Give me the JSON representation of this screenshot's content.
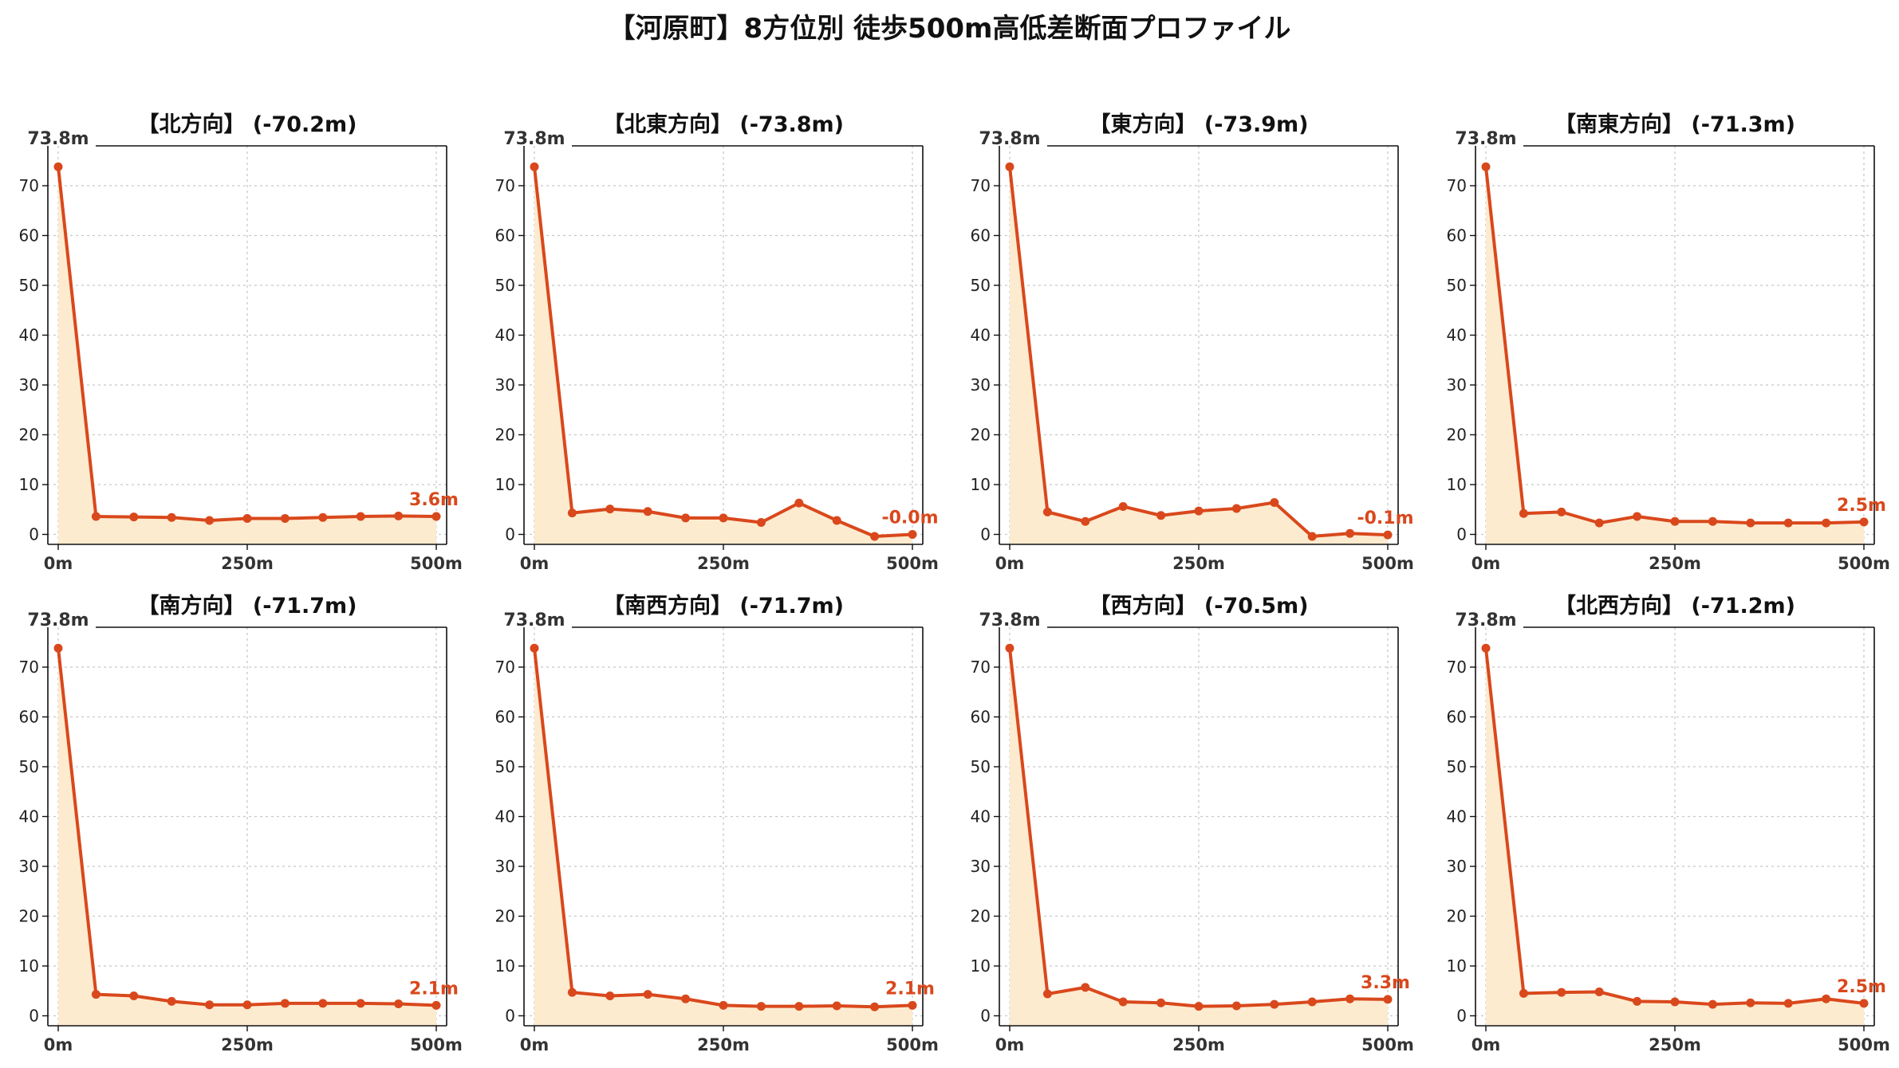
{
  "title": "【河原町】8方位別 徒歩500m高低差断面プロファイル",
  "colors": {
    "line": "#d9481c",
    "fill": "#fdebd0",
    "grid": "#c8c8c8"
  },
  "chart_data": [
    {
      "type": "area",
      "title": "【北方向】 (-70.2m)",
      "start_label": "73.8m",
      "end_label": "3.6m",
      "x": [
        0,
        50,
        100,
        150,
        200,
        250,
        300,
        350,
        400,
        450,
        500
      ],
      "y": [
        73.8,
        3.6,
        3.5,
        3.4,
        2.8,
        3.2,
        3.2,
        3.4,
        3.6,
        3.7,
        3.6
      ],
      "xticks": [
        "0m",
        "250m",
        "500m"
      ],
      "yticks": [
        "0",
        "10",
        "20",
        "30",
        "40",
        "50",
        "60",
        "70"
      ],
      "xlim": [
        0,
        500
      ],
      "ylim": [
        -2,
        78
      ],
      "grid": true
    },
    {
      "type": "area",
      "title": "【北東方向】 (-73.8m)",
      "start_label": "73.8m",
      "end_label": "-0.0m",
      "x": [
        0,
        50,
        100,
        150,
        200,
        250,
        300,
        350,
        400,
        450,
        500
      ],
      "y": [
        73.8,
        4.3,
        5.1,
        4.6,
        3.3,
        3.3,
        2.4,
        6.3,
        2.8,
        -0.4,
        0.0
      ],
      "xticks": [
        "0m",
        "250m",
        "500m"
      ],
      "yticks": [
        "0",
        "10",
        "20",
        "30",
        "40",
        "50",
        "60",
        "70"
      ],
      "xlim": [
        0,
        500
      ],
      "ylim": [
        -2,
        78
      ],
      "grid": true
    },
    {
      "type": "area",
      "title": "【東方向】 (-73.9m)",
      "start_label": "73.8m",
      "end_label": "-0.1m",
      "x": [
        0,
        50,
        100,
        150,
        200,
        250,
        300,
        350,
        400,
        450,
        500
      ],
      "y": [
        73.8,
        4.5,
        2.6,
        5.6,
        3.8,
        4.7,
        5.2,
        6.4,
        -0.4,
        0.2,
        -0.1
      ],
      "xticks": [
        "0m",
        "250m",
        "500m"
      ],
      "yticks": [
        "0",
        "10",
        "20",
        "30",
        "40",
        "50",
        "60",
        "70"
      ],
      "xlim": [
        0,
        500
      ],
      "ylim": [
        -2,
        78
      ],
      "grid": true
    },
    {
      "type": "area",
      "title": "【南東方向】 (-71.3m)",
      "start_label": "73.8m",
      "end_label": "2.5m",
      "x": [
        0,
        50,
        100,
        150,
        200,
        250,
        300,
        350,
        400,
        450,
        500
      ],
      "y": [
        73.8,
        4.2,
        4.5,
        2.3,
        3.6,
        2.6,
        2.6,
        2.3,
        2.3,
        2.3,
        2.5
      ],
      "xticks": [
        "0m",
        "250m",
        "500m"
      ],
      "yticks": [
        "0",
        "10",
        "20",
        "30",
        "40",
        "50",
        "60",
        "70"
      ],
      "xlim": [
        0,
        500
      ],
      "ylim": [
        -2,
        78
      ],
      "grid": true
    },
    {
      "type": "area",
      "title": "【南方向】 (-71.7m)",
      "start_label": "73.8m",
      "end_label": "2.1m",
      "x": [
        0,
        50,
        100,
        150,
        200,
        250,
        300,
        350,
        400,
        450,
        500
      ],
      "y": [
        73.8,
        4.3,
        4.0,
        2.9,
        2.2,
        2.2,
        2.5,
        2.5,
        2.5,
        2.4,
        2.1
      ],
      "xticks": [
        "0m",
        "250m",
        "500m"
      ],
      "yticks": [
        "0",
        "10",
        "20",
        "30",
        "40",
        "50",
        "60",
        "70"
      ],
      "xlim": [
        0,
        500
      ],
      "ylim": [
        -2,
        78
      ],
      "grid": true
    },
    {
      "type": "area",
      "title": "【南西方向】 (-71.7m)",
      "start_label": "73.8m",
      "end_label": "2.1m",
      "x": [
        0,
        50,
        100,
        150,
        200,
        250,
        300,
        350,
        400,
        450,
        500
      ],
      "y": [
        73.8,
        4.7,
        4.0,
        4.3,
        3.4,
        2.1,
        1.9,
        1.9,
        2.0,
        1.8,
        2.1
      ],
      "xticks": [
        "0m",
        "250m",
        "500m"
      ],
      "yticks": [
        "0",
        "10",
        "20",
        "30",
        "40",
        "50",
        "60",
        "70"
      ],
      "xlim": [
        0,
        500
      ],
      "ylim": [
        -2,
        78
      ],
      "grid": true
    },
    {
      "type": "area",
      "title": "【西方向】 (-70.5m)",
      "start_label": "73.8m",
      "end_label": "3.3m",
      "x": [
        0,
        50,
        100,
        150,
        200,
        250,
        300,
        350,
        400,
        450,
        500
      ],
      "y": [
        73.8,
        4.4,
        5.7,
        2.8,
        2.6,
        1.9,
        2.0,
        2.3,
        2.8,
        3.4,
        3.3
      ],
      "xticks": [
        "0m",
        "250m",
        "500m"
      ],
      "yticks": [
        "0",
        "10",
        "20",
        "30",
        "40",
        "50",
        "60",
        "70"
      ],
      "xlim": [
        0,
        500
      ],
      "ylim": [
        -2,
        78
      ],
      "grid": true
    },
    {
      "type": "area",
      "title": "【北西方向】 (-71.2m)",
      "start_label": "73.8m",
      "end_label": "2.5m",
      "x": [
        0,
        50,
        100,
        150,
        200,
        250,
        300,
        350,
        400,
        450,
        500
      ],
      "y": [
        73.8,
        4.5,
        4.7,
        4.8,
        2.9,
        2.8,
        2.3,
        2.6,
        2.5,
        3.4,
        2.5
      ],
      "xticks": [
        "0m",
        "250m",
        "500m"
      ],
      "yticks": [
        "0",
        "10",
        "20",
        "30",
        "40",
        "50",
        "60",
        "70"
      ],
      "xlim": [
        0,
        500
      ],
      "ylim": [
        -2,
        78
      ],
      "grid": true
    }
  ]
}
